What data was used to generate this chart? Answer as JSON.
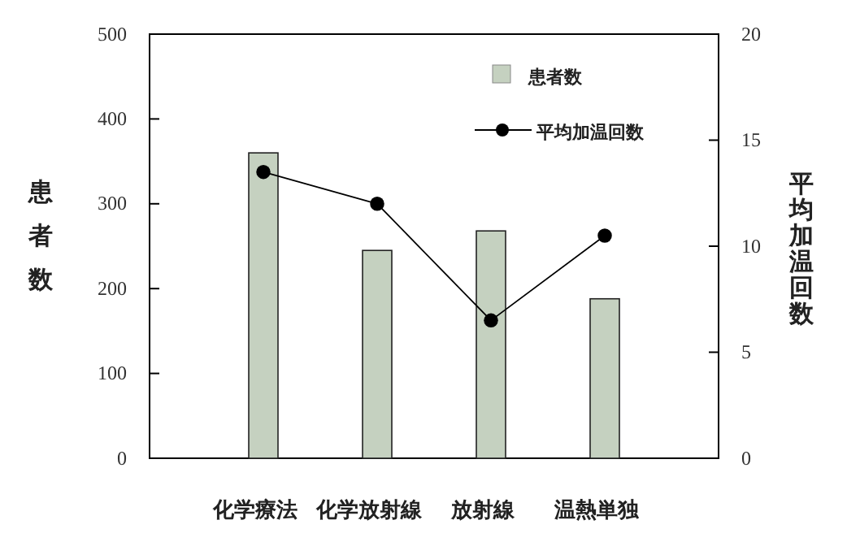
{
  "chart_data": {
    "type": "bar",
    "categories": [
      "化学療法",
      "化学放射線",
      "放射線",
      "温熱単独"
    ],
    "series": [
      {
        "name": "患者数",
        "color": "#c5d1c0",
        "values": [
          360,
          245,
          268,
          188
        ]
      },
      {
        "name": "平均加温回数",
        "type": "line",
        "axis": "y2",
        "color": "#000000",
        "values": [
          13.5,
          12,
          6.5,
          10.5
        ]
      }
    ],
    "ylabel": "患者数",
    "y2label": "平均加温回数",
    "ylim": [
      0,
      500
    ],
    "yticks": [
      0,
      100,
      200,
      300,
      400,
      500
    ],
    "y2lim": [
      0,
      20
    ],
    "y2ticks": [
      0,
      5,
      10,
      15,
      20
    ],
    "legend": "top right",
    "marker": "circle",
    "grid": false
  }
}
